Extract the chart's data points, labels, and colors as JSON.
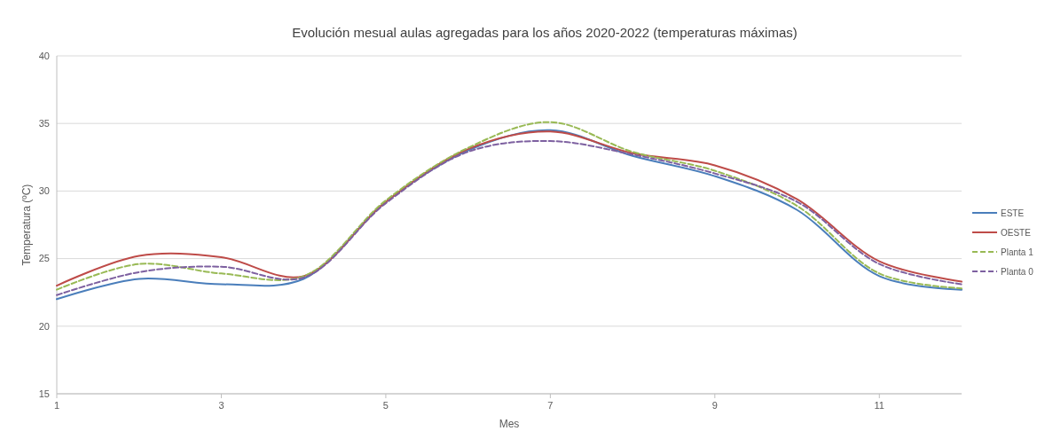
{
  "chart_data": {
    "type": "line",
    "title": "Evolución mesual aulas agregadas para los años 2020-2022 (temperaturas máximas)",
    "xlabel": "Mes",
    "ylabel": "Temperatura (ºC)",
    "x": [
      1,
      2,
      3,
      4,
      5,
      6,
      7,
      8,
      9,
      10,
      11,
      12
    ],
    "series": [
      {
        "name": "ESTE",
        "color": "#4a7ebb",
        "line_style": "solid",
        "values": [
          22.0,
          23.5,
          23.1,
          23.5,
          29.2,
          33.0,
          34.5,
          32.6,
          31.1,
          28.6,
          23.7,
          22.7
        ]
      },
      {
        "name": "OESTE",
        "color": "#be4b48",
        "line_style": "solid",
        "values": [
          23.0,
          25.2,
          25.1,
          23.7,
          29.2,
          33.1,
          34.4,
          32.8,
          31.9,
          29.4,
          24.8,
          23.3
        ]
      },
      {
        "name": "Planta 1",
        "color": "#98b954",
        "line_style": "dashed",
        "values": [
          22.7,
          24.6,
          23.9,
          23.7,
          29.3,
          33.2,
          35.1,
          32.9,
          31.5,
          28.9,
          23.9,
          22.8
        ]
      },
      {
        "name": "Planta 0",
        "color": "#7d60a0",
        "line_style": "dashed",
        "values": [
          22.3,
          24.0,
          24.4,
          23.6,
          29.1,
          32.9,
          33.7,
          32.7,
          31.3,
          29.2,
          24.6,
          23.1
        ]
      }
    ],
    "xlim": [
      1,
      12
    ],
    "xticks": [
      1,
      3,
      5,
      7,
      9,
      11
    ],
    "ylim": [
      15,
      40
    ],
    "yticks": [
      15,
      20,
      25,
      30,
      35,
      40
    ],
    "grid": "y",
    "legend": "right",
    "marker": "none"
  }
}
